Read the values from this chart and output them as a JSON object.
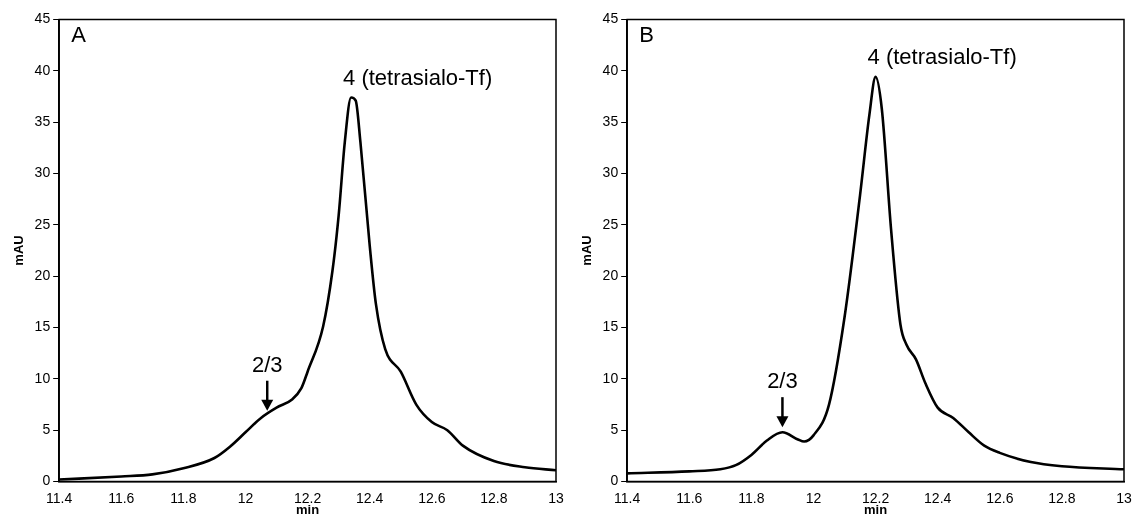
{
  "chart_data": [
    {
      "type": "line",
      "xlabel": "min",
      "ylabel": "mAU",
      "annotations": [
        "A",
        {
          "text": "4 (tetrasialo-Tf)",
          "x": 12.34,
          "y": 37.4
        },
        {
          "text": "2/3",
          "x": 12.07,
          "y": 6.9
        }
      ],
      "xlim": [
        11.4,
        13
      ],
      "xticks": [
        11.4,
        11.6,
        11.8,
        12,
        12.2,
        12.4,
        12.6,
        12.8,
        13
      ],
      "ylim": [
        0,
        45
      ],
      "yticks": [
        0,
        5,
        10,
        15,
        20,
        25,
        30,
        35,
        40,
        45
      ],
      "grid": false,
      "legend": false,
      "marker": "none",
      "line_style": "solid",
      "series": [
        {
          "color": "#000000",
          "x": [
            11.4,
            11.6,
            11.7,
            11.8,
            11.9,
            11.95,
            12,
            12.05,
            12.1,
            12.15,
            12.18,
            12.2,
            12.25,
            12.28,
            12.3,
            12.32,
            12.34,
            12.355,
            12.37,
            12.4,
            12.42,
            12.45,
            12.5,
            12.55,
            12.6,
            12.65,
            12.7,
            12.8,
            12.9,
            13
          ],
          "values": [
            0.2,
            0.5,
            0.7,
            1.3,
            2.3,
            3.4,
            4.8,
            6.2,
            7.2,
            8.0,
            9.1,
            10.7,
            15.1,
            20.5,
            25.9,
            33.1,
            37.4,
            37.1,
            33.1,
            23,
            17.3,
            12.9,
            10.7,
            7.5,
            5.8,
            5.0,
            3.5,
            2.0,
            1.4,
            1.1
          ]
        }
      ]
    },
    {
      "type": "line",
      "xlabel": "min",
      "ylabel": "mAU",
      "annotations": [
        "B",
        {
          "text": "4 (tetrasialo-Tf)",
          "x": 12.2,
          "y": 39.4
        },
        {
          "text": "2/3",
          "x": 11.9,
          "y": 5.3
        }
      ],
      "xlim": [
        11.4,
        13
      ],
      "xticks": [
        11.4,
        11.6,
        11.8,
        12,
        12.2,
        12.4,
        12.6,
        12.8,
        13
      ],
      "ylim": [
        0,
        45
      ],
      "yticks": [
        0,
        5,
        10,
        15,
        20,
        25,
        30,
        35,
        40,
        45
      ],
      "grid": false,
      "legend": false,
      "marker": "none",
      "line_style": "solid",
      "series": [
        {
          "color": "#000000",
          "x": [
            11.4,
            11.6,
            11.7,
            11.75,
            11.8,
            11.85,
            11.9,
            11.95,
            11.97,
            12,
            12.05,
            12.1,
            12.15,
            12.18,
            12.2,
            12.22,
            12.25,
            12.28,
            12.3,
            12.33,
            12.36,
            12.4,
            12.45,
            12.5,
            12.55,
            12.6,
            12.7,
            12.8,
            13
          ],
          "values": [
            0.8,
            1.0,
            1.2,
            1.6,
            2.6,
            4.0,
            4.8,
            4.1,
            3.9,
            4.5,
            7.5,
            16,
            27.9,
            35.7,
            39.4,
            36.3,
            24.5,
            15.3,
            13.3,
            11.9,
            9.6,
            7.2,
            6.2,
            4.8,
            3.5,
            2.8,
            1.9,
            1.5,
            1.2
          ]
        }
      ]
    }
  ]
}
